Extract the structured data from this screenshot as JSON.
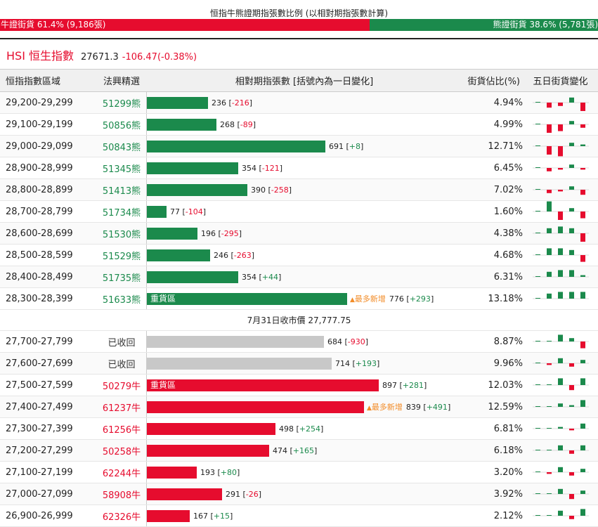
{
  "ratio": {
    "title": "恒指牛熊證期指張數比例 (以相對期指張數計算)",
    "bull_text": "牛證街貨 61.4% (9,186張)",
    "bear_text": "熊證街貨 38.6% (5,781張)",
    "bull_share": 61.4,
    "bear_share": 38.6,
    "bull_color": "#e60c2e",
    "bear_color": "#1b8a4c"
  },
  "index": {
    "name": "HSI 恒生指數",
    "price": "27671.3",
    "change": "-106.47(-0.38%)"
  },
  "table": {
    "headers": {
      "range": "恒指指數區域",
      "pick": "法興精選",
      "bar": "相對期指張數 [括號內為一日變化]",
      "pct": "街貨佔比(%)",
      "spark": "五日街貨變化"
    },
    "max_contracts": 900,
    "bear_rows": [
      {
        "range": "29,200-29,299",
        "pick": "51299熊",
        "contracts": 236,
        "value": "236",
        "delta": "-216",
        "pct": "4.94%",
        "spark": [
          0,
          -3,
          -2,
          3,
          -5
        ]
      },
      {
        "range": "29,100-29,199",
        "pick": "50856熊",
        "contracts": 268,
        "value": "268",
        "delta": "-89",
        "pct": "4.99%",
        "spark": [
          0,
          -5,
          -4,
          2,
          -2
        ]
      },
      {
        "range": "29,000-29,099",
        "pick": "50843熊",
        "contracts": 691,
        "value": "691",
        "delta": "+8",
        "pct": "12.71%",
        "spark": [
          0,
          -5,
          -6,
          2,
          1
        ]
      },
      {
        "range": "28,900-28,999",
        "pick": "51345熊",
        "contracts": 354,
        "value": "354",
        "delta": "-121",
        "pct": "6.45%",
        "spark": [
          0,
          -2,
          -1,
          2,
          -1
        ]
      },
      {
        "range": "28,800-28,899",
        "pick": "51413熊",
        "contracts": 390,
        "value": "390",
        "delta": "-258",
        "pct": "7.02%",
        "spark": [
          0,
          -2,
          -1,
          2,
          -3
        ]
      },
      {
        "range": "28,700-28,799",
        "pick": "51734熊",
        "contracts": 77,
        "value": "77",
        "delta": "-104",
        "pct": "1.60%",
        "spark": [
          0,
          6,
          -5,
          2,
          -4
        ]
      },
      {
        "range": "28,600-28,699",
        "pick": "51530熊",
        "contracts": 196,
        "value": "196",
        "delta": "-295",
        "pct": "4.38%",
        "spark": [
          0,
          3,
          4,
          3,
          -5
        ]
      },
      {
        "range": "28,500-28,599",
        "pick": "51529熊",
        "contracts": 246,
        "value": "246",
        "delta": "-263",
        "pct": "4.68%",
        "spark": [
          0,
          4,
          4,
          3,
          -4
        ]
      },
      {
        "range": "28,400-28,499",
        "pick": "51735熊",
        "contracts": 354,
        "value": "354",
        "delta": "+44",
        "pct": "6.31%",
        "spark": [
          0,
          3,
          4,
          4,
          1
        ]
      },
      {
        "range": "28,300-28,399",
        "pick": "51633熊",
        "contracts": 776,
        "value": "776",
        "delta": "+293",
        "pct": "13.18%",
        "spark": [
          0,
          3,
          4,
          4,
          4
        ],
        "bar_label": "重貨區",
        "note": "最多新增"
      }
    ],
    "divider": "7月31日收市價 27,777.75",
    "bull_rows": [
      {
        "range": "27,700-27,799",
        "pick": "已收回",
        "closed": true,
        "contracts": 684,
        "value": "684",
        "delta": "-930",
        "pct": "8.87%",
        "spark": [
          0,
          0,
          4,
          2,
          -4
        ]
      },
      {
        "range": "27,600-27,699",
        "pick": "已收回",
        "closed": true,
        "contracts": 714,
        "value": "714",
        "delta": "+193",
        "pct": "9.96%",
        "spark": [
          0,
          -1,
          3,
          -2,
          2
        ]
      },
      {
        "range": "27,500-27,599",
        "pick": "50279牛",
        "contracts": 897,
        "value": "897",
        "delta": "+281",
        "pct": "12.03%",
        "spark": [
          0,
          0,
          4,
          -3,
          4
        ],
        "bar_label": "重貨區"
      },
      {
        "range": "27,400-27,499",
        "pick": "61237牛",
        "contracts": 839,
        "value": "839",
        "delta": "+491",
        "pct": "12.59%",
        "spark": [
          0,
          0,
          2,
          1,
          4
        ],
        "note": "最多新增"
      },
      {
        "range": "27,300-27,399",
        "pick": "61256牛",
        "contracts": 498,
        "value": "498",
        "delta": "+254",
        "pct": "6.81%",
        "spark": [
          0,
          0,
          1,
          -1,
          3
        ]
      },
      {
        "range": "27,200-27,299",
        "pick": "50258牛",
        "contracts": 474,
        "value": "474",
        "delta": "+165",
        "pct": "6.18%",
        "spark": [
          0,
          0,
          3,
          -2,
          3
        ]
      },
      {
        "range": "27,100-27,199",
        "pick": "62244牛",
        "contracts": 193,
        "value": "193",
        "delta": "+80",
        "pct": "3.20%",
        "spark": [
          0,
          -1,
          3,
          -2,
          2
        ]
      },
      {
        "range": "27,000-27,099",
        "pick": "58908牛",
        "contracts": 291,
        "value": "291",
        "delta": "-26",
        "pct": "3.92%",
        "spark": [
          0,
          0,
          3,
          -3,
          2
        ]
      },
      {
        "range": "26,900-26,999",
        "pick": "62326牛",
        "contracts": 167,
        "value": "167",
        "delta": "+15",
        "pct": "2.12%",
        "spark": [
          0,
          0,
          3,
          -2,
          4
        ]
      }
    ]
  }
}
